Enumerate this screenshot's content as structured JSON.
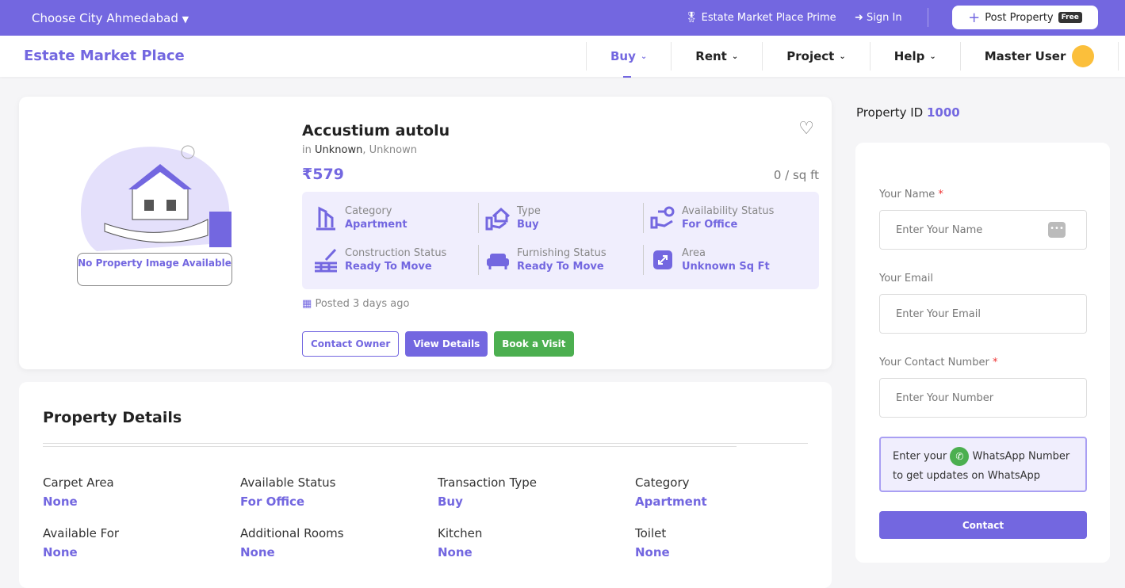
{
  "topbar": {
    "city_label": "Choose City Ahmedabad",
    "prime": "Estate Market Place Prime",
    "sign_in": "Sign In",
    "post_property": "Post Property",
    "free_badge": "Free"
  },
  "nav": {
    "brand": "Estate Market Place",
    "items": [
      {
        "label": "Buy"
      },
      {
        "label": "Rent"
      },
      {
        "label": "Project"
      },
      {
        "label": "Help"
      }
    ],
    "user": "Master User"
  },
  "listing": {
    "no_image": "No Property Image Available",
    "title": "Accustium autolu",
    "loc_prefix": "in",
    "locality": "Unknown",
    "city": ", Unknown",
    "price": "₹579",
    "price_per_sqft": "0 / sq ft",
    "features": [
      {
        "label": "Category",
        "value": "Apartment",
        "icon": "building-icon"
      },
      {
        "label": "Type",
        "value": "Buy",
        "icon": "house-hand-icon"
      },
      {
        "label": "Availability Status",
        "value": "For Office",
        "icon": "key-hand-icon"
      },
      {
        "label": "Construction Status",
        "value": "Ready To Move",
        "icon": "trowel-brick-icon"
      },
      {
        "label": "Furnishing Status",
        "value": "Ready To Move",
        "icon": "sofa-icon"
      },
      {
        "label": "Area",
        "value": "Unknown Sq Ft",
        "icon": "expand-icon"
      }
    ],
    "posted": "Posted 3 days ago",
    "buttons": {
      "contact_owner": "Contact Owner",
      "view_details": "View Details",
      "book_visit": "Book a Visit"
    }
  },
  "details": {
    "title": "Property Details",
    "items": [
      {
        "label": "Carpet Area",
        "value": "None"
      },
      {
        "label": "Available Status",
        "value": "For Office"
      },
      {
        "label": "Transaction Type",
        "value": "Buy"
      },
      {
        "label": "Category",
        "value": "Apartment"
      },
      {
        "label": "Available For",
        "value": "None"
      },
      {
        "label": "Additional Rooms",
        "value": "None"
      },
      {
        "label": "Kitchen",
        "value": "None"
      },
      {
        "label": "Toilet",
        "value": "None"
      }
    ]
  },
  "sidebar": {
    "property_id_label": "Property ID",
    "property_id": "1000",
    "form": {
      "name_label": "Your Name",
      "name_placeholder": "Enter Your Name",
      "email_label": "Your Email",
      "email_placeholder": "Enter Your Email",
      "phone_label": "Your Contact Number",
      "phone_placeholder": "Enter Your Number",
      "required_mark": "*",
      "wa_pre": "Enter your",
      "wa_post": "WhatsApp Number to get updates on WhatsApp",
      "submit": "Contact"
    }
  },
  "colors": {
    "accent": "#7367e0",
    "success": "#4caf50",
    "avatar": "#fbbf3b"
  }
}
